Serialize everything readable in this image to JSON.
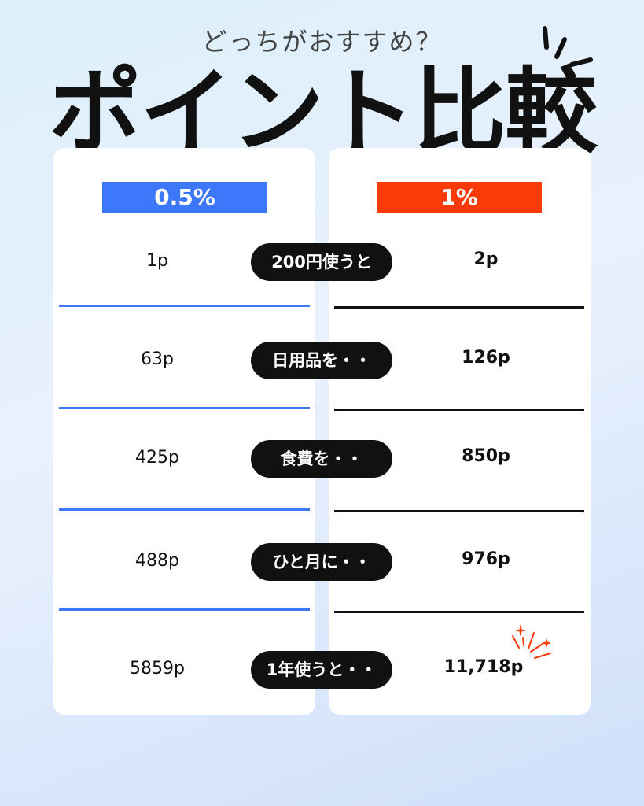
{
  "header": {
    "subtitle": "どっちがおすすめ？",
    "title": "ポイント比較"
  },
  "colors": {
    "left_accent": "#3d78fa",
    "right_accent": "#fa3a09",
    "pill": "#111111",
    "right_line": "#111111"
  },
  "columns": {
    "left_label": "0.5%",
    "right_label": "1%"
  },
  "rows": [
    {
      "label": "200円使うと",
      "left": "1p",
      "right": "2p"
    },
    {
      "label": "日用品を・・",
      "left": "63p",
      "right": "126p"
    },
    {
      "label": "食費を・・",
      "left": "425p",
      "right": "850p"
    },
    {
      "label": "ひと月に・・",
      "left": "488p",
      "right": "976p"
    },
    {
      "label": "1年使うと・・",
      "left": "5859p",
      "right": "11,718p"
    }
  ],
  "icons": {
    "title_emphasis": "emphasis-lines-icon",
    "highlight": "sparkle-icon"
  }
}
